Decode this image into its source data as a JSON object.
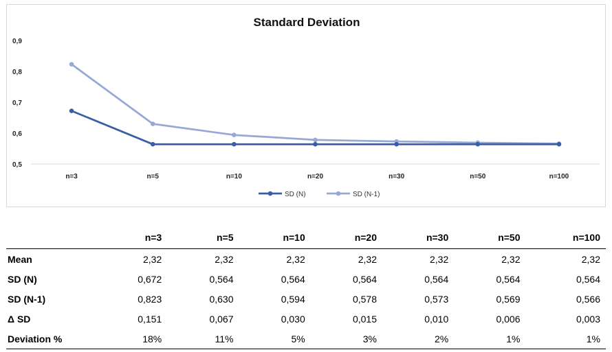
{
  "chart_data": {
    "type": "line",
    "title": "Standard Deviation",
    "categories": [
      "n=3",
      "n=5",
      "n=10",
      "n=20",
      "n=30",
      "n=50",
      "n=100"
    ],
    "series": [
      {
        "name": "SD (N)",
        "values": [
          0.672,
          0.564,
          0.564,
          0.564,
          0.564,
          0.564,
          0.564
        ],
        "color": "#3a5ea6"
      },
      {
        "name": "SD (N-1)",
        "values": [
          0.823,
          0.63,
          0.594,
          0.578,
          0.573,
          0.569,
          0.566
        ],
        "color": "#97a8d6"
      }
    ],
    "ylim": [
      0.5,
      0.9
    ],
    "yticks": [
      "0,5",
      "0,6",
      "0,7",
      "0,8",
      "0,9"
    ],
    "grid": false,
    "legend": "bottom-center"
  },
  "table": {
    "columns": [
      "n=3",
      "n=5",
      "n=10",
      "n=20",
      "n=30",
      "n=50",
      "n=100"
    ],
    "rows": [
      {
        "label": "Mean",
        "values": [
          "2,32",
          "2,32",
          "2,32",
          "2,32",
          "2,32",
          "2,32",
          "2,32"
        ]
      },
      {
        "label": "SD (N)",
        "values": [
          "0,672",
          "0,564",
          "0,564",
          "0,564",
          "0,564",
          "0,564",
          "0,564"
        ]
      },
      {
        "label": "SD (N-1)",
        "values": [
          "0,823",
          "0,630",
          "0,594",
          "0,578",
          "0,573",
          "0,569",
          "0,566"
        ]
      },
      {
        "label": "Δ SD",
        "values": [
          "0,151",
          "0,067",
          "0,030",
          "0,015",
          "0,010",
          "0,006",
          "0,003"
        ]
      },
      {
        "label": "Deviation %",
        "values": [
          "18%",
          "11%",
          "5%",
          "3%",
          "2%",
          "1%",
          "1%"
        ]
      }
    ]
  }
}
